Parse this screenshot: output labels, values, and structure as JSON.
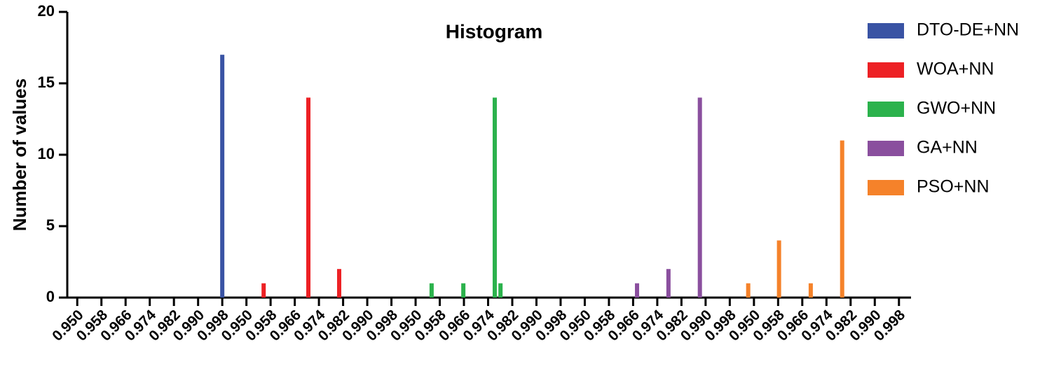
{
  "chart_data": {
    "type": "bar",
    "title": "Histogram",
    "ylabel": "Number of values",
    "ylim": [
      0,
      20
    ],
    "yticks": [
      0,
      5,
      10,
      15,
      20
    ],
    "xlim": [
      0.946,
      1.002
    ],
    "xticks": [
      {
        "value": 0.95,
        "label": "0.950"
      },
      {
        "value": 0.958,
        "label": "0.958"
      },
      {
        "value": 0.966,
        "label": "0.966"
      },
      {
        "value": 0.974,
        "label": "0.974"
      },
      {
        "value": 0.982,
        "label": "0.982"
      },
      {
        "value": 0.99,
        "label": "0.990"
      },
      {
        "value": 0.998,
        "label": "0.998"
      }
    ],
    "legend": "right",
    "series": [
      {
        "name": "DTO-DE+NN",
        "color": "#3953a4",
        "x": [
          0.998
        ],
        "values": [
          17
        ]
      },
      {
        "name": "WOA+NN",
        "color": "#ed2024",
        "x": [
          0.9557,
          0.9705,
          0.9807
        ],
        "values": [
          1,
          14,
          2
        ]
      },
      {
        "name": "GWO+NN",
        "color": "#2bb24c",
        "x": [
          0.9553,
          0.9658,
          0.9762,
          0.9781
        ],
        "values": [
          1,
          1,
          14,
          1
        ]
      },
      {
        "name": "GA+NN",
        "color": "#8a4f9e",
        "x": [
          0.9673,
          0.9777,
          0.9881
        ],
        "values": [
          1,
          2,
          14
        ]
      },
      {
        "name": "PSO+NN",
        "color": "#f5822a",
        "x": [
          0.9481,
          0.9583,
          0.9688,
          0.9792
        ],
        "values": [
          1,
          4,
          1,
          11
        ]
      }
    ]
  }
}
